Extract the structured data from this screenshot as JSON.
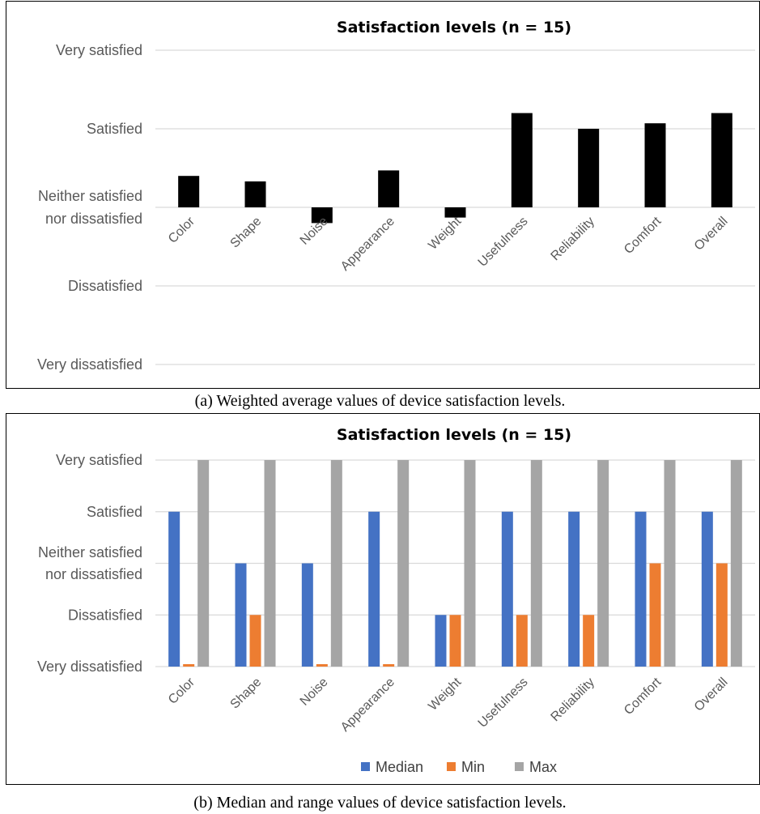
{
  "captions": {
    "a": "(a) Weighted average values of device satisfaction levels.",
    "b": "(b) Median and range values of device satisfaction levels."
  },
  "colors": {
    "bar_a": "#000000",
    "median": "#4472C4",
    "min": "#ED7D31",
    "max": "#A5A5A5",
    "grid": "#D9D9D9"
  },
  "chart_data": [
    {
      "type": "bar",
      "title": "Satisfaction levels (n = 15)",
      "categories": [
        "Color",
        "Shape",
        "Noise",
        "Appearance",
        "Weight",
        "Usefulness",
        "Reliability",
        "Comfort",
        "Overall"
      ],
      "y_tick_labels": [
        "Very dissatisfied",
        "Dissatisfied",
        "Neither satisfied nor dissatisfied",
        "Satisfied",
        "Very satisfied"
      ],
      "y_tick_values": [
        -2,
        -1,
        0,
        1,
        2
      ],
      "ylim": [
        -2,
        2
      ],
      "values": [
        0.4,
        0.33,
        -0.2,
        0.47,
        -0.13,
        1.2,
        1.0,
        1.07,
        1.2
      ],
      "grid": true,
      "legend": "none"
    },
    {
      "type": "bar",
      "title": "Satisfaction levels (n = 15)",
      "categories": [
        "Color",
        "Shape",
        "Noise",
        "Appearance",
        "Weight",
        "Usefulness",
        "Reliability",
        "Comfort",
        "Overall"
      ],
      "y_tick_labels": [
        "Very dissatisfied",
        "Dissatisfied",
        "Neither satisfied nor dissatisfied",
        "Satisfied",
        "Very satisfied"
      ],
      "y_tick_values": [
        1,
        2,
        3,
        4,
        5
      ],
      "ylim": [
        1,
        5
      ],
      "series": [
        {
          "name": "Median",
          "values": [
            4,
            3,
            3,
            4,
            2,
            4,
            4,
            4,
            4
          ]
        },
        {
          "name": "Min",
          "values": [
            1,
            2,
            1,
            1,
            2,
            2,
            2,
            3,
            3
          ]
        },
        {
          "name": "Max",
          "values": [
            5,
            5,
            5,
            5,
            5,
            5,
            5,
            5,
            5
          ]
        }
      ],
      "grid": true,
      "legend": "bottom"
    }
  ]
}
